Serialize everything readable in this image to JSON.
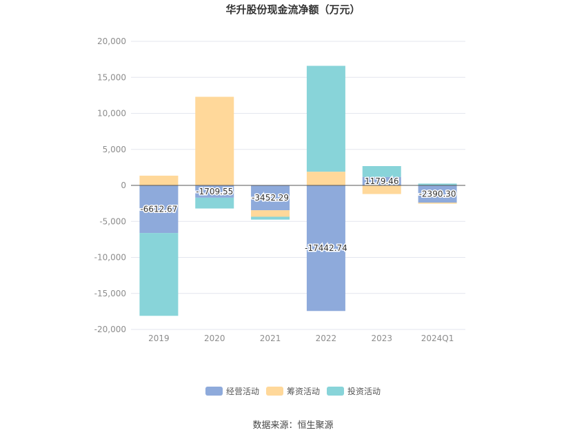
{
  "chart_data": {
    "type": "bar",
    "stacked": true,
    "title": "华升股份现金流净额（万元）",
    "categories": [
      "2019",
      "2020",
      "2021",
      "2022",
      "2023",
      "2024Q1"
    ],
    "series": [
      {
        "name": "经营活动",
        "values": [
          -6612.67,
          -1709.55,
          -3452.29,
          -17442.74,
          1179.46,
          -2390.3
        ],
        "color": "#8eaadb"
      },
      {
        "name": "筹资活动",
        "values": [
          1350,
          12300,
          -900,
          1900,
          -1200,
          -150
        ],
        "color": "#ffd89a"
      },
      {
        "name": "投资活动",
        "values": [
          -11500,
          -1500,
          -400,
          14700,
          1500,
          250
        ],
        "color": "#88d4d9"
      }
    ],
    "data_labels": [
      "-6612.67",
      "-1709.55",
      "-3452.29",
      "-17442.74",
      "1179.46",
      "-2390.30"
    ],
    "yticks": [
      "-20,000",
      "-15,000",
      "-10,000",
      "-5,000",
      "0",
      "5,000",
      "10,000",
      "15,000",
      "20,000"
    ],
    "ylim": [
      -20000,
      20000
    ],
    "xlabel": "",
    "ylabel": "",
    "legend_position": "bottom",
    "grid": true
  },
  "source": "数据来源：恒生聚源"
}
